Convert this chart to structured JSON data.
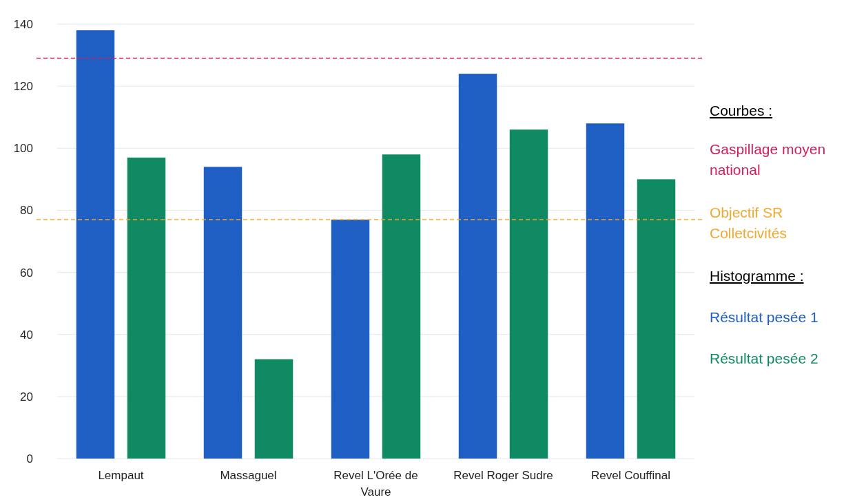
{
  "chart_data": {
    "type": "bar",
    "categories": [
      "Lempaut",
      "Massaguel",
      "Revel L'Orée de Vaure",
      "Revel Roger Sudre",
      "Revel Couffinal"
    ],
    "series": [
      {
        "name": "Résultat pesée 1",
        "color": "#1f5fc4",
        "values": [
          138,
          94,
          77,
          124,
          108
        ]
      },
      {
        "name": "Résultat pesée 2",
        "color": "#0f8a62",
        "values": [
          97,
          32,
          98,
          106,
          90
        ]
      }
    ],
    "ylim": [
      0,
      140
    ],
    "yticks": [
      0,
      20,
      40,
      60,
      80,
      100,
      120,
      140
    ],
    "grid": "y",
    "legend": "right",
    "ref_lines": [
      {
        "axis": "y",
        "value": 129,
        "label": "Gaspillage moyen national",
        "color": "#d0205a",
        "line_style": "dashed"
      },
      {
        "axis": "y",
        "value": 77,
        "label": "Objectif SR Colletcivités",
        "color": "#f0a830",
        "line_style": "dashed"
      }
    ],
    "annotations": [
      "Courbes :",
      "Histogramme :"
    ]
  }
}
